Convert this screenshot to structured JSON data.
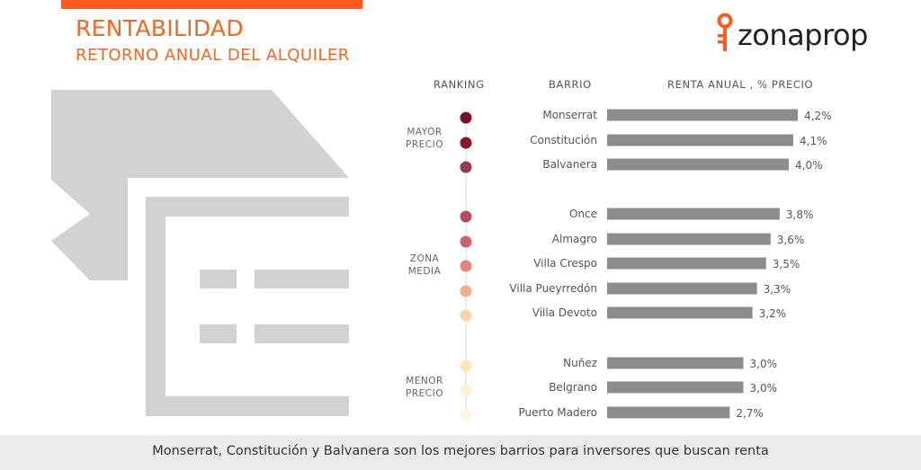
{
  "header": {
    "title": "RENTABILIDAD",
    "subtitle": "RETORNO ANUAL DEL ALQUILER",
    "brand": "zonaprop",
    "accent_color": "#ff5a1f",
    "title_color": "#f26722"
  },
  "table_headers": {
    "ranking": "RANKING",
    "barrio": "BARRIO",
    "renta": "RENTA ANUAL , % PRECIO"
  },
  "groups": {
    "top": [
      "MAYOR",
      "PRECIO"
    ],
    "mid": [
      "ZONA",
      "MEDIA"
    ],
    "low": [
      "MENOR",
      "PRECIO"
    ]
  },
  "chart_data": {
    "type": "bar",
    "orientation": "horizontal",
    "categories": [
      "Monserrat",
      "Constitución",
      "Balvanera",
      "Once",
      "Almagro",
      "Villa Crespo",
      "Villa Pueyrredón",
      "Villa Devoto",
      "Nuñez",
      "Belgrano",
      "Puerto Madero"
    ],
    "values": [
      4.2,
      4.1,
      4.0,
      3.8,
      3.6,
      3.5,
      3.3,
      3.2,
      3.0,
      3.0,
      2.7
    ],
    "value_labels": [
      "4,2%",
      "4,1%",
      "4,0%",
      "3,8%",
      "3,6%",
      "3,5%",
      "3,3%",
      "3,2%",
      "3,0%",
      "3,0%",
      "2,7%"
    ],
    "xlabel": "RENTA ANUAL , % PRECIO",
    "bar_color": "#8c8c8c",
    "dot_colors": [
      "#7b1022",
      "#861527",
      "#963a50",
      "#b34f60",
      "#c86470",
      "#e2857c",
      "#f0ad8e",
      "#f7d4a9",
      "#fbe7b7",
      "#fdf2d2",
      "#fdf6df"
    ]
  },
  "footer": {
    "text": "Monserrat, Constitución y Balvanera son los mejores barrios para inversores que buscan renta"
  }
}
